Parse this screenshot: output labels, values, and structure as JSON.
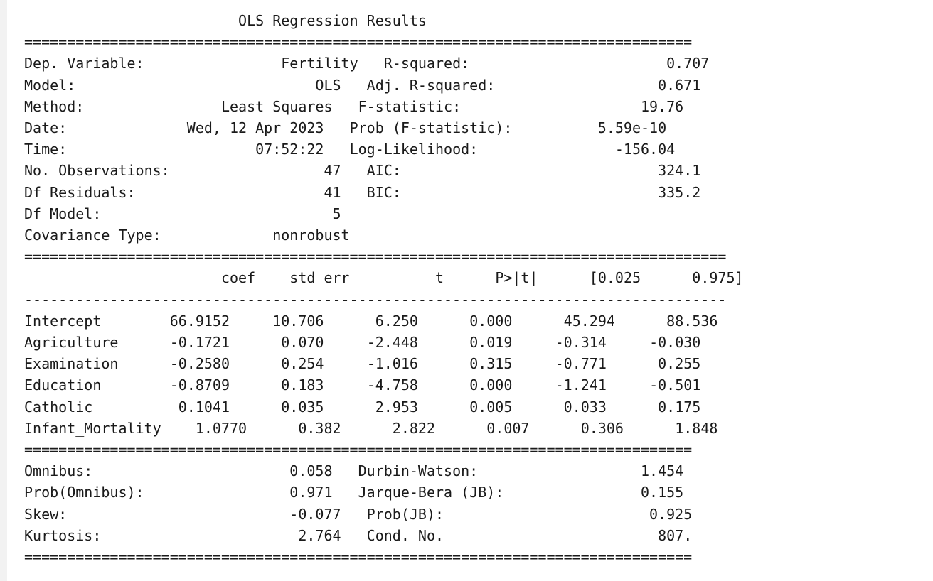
{
  "title": "OLS Regression Results",
  "rule_eq_short": "==============================================================================",
  "rule_eq_long": "==================================================================================",
  "rule_dash_long": "----------------------------------------------------------------------------------",
  "top": [
    {
      "l_label": "Dep. Variable:",
      "l_value": "Fertility",
      "r_label": "R-squared:",
      "r_value": "0.707"
    },
    {
      "l_label": "Model:",
      "l_value": "OLS",
      "r_label": "Adj. R-squared:",
      "r_value": "0.671"
    },
    {
      "l_label": "Method:",
      "l_value": "Least Squares",
      "r_label": "F-statistic:",
      "r_value": "19.76"
    },
    {
      "l_label": "Date:",
      "l_value": "Wed, 12 Apr 2023",
      "r_label": "Prob (F-statistic):",
      "r_value": "5.59e-10"
    },
    {
      "l_label": "Time:",
      "l_value": "07:52:22",
      "r_label": "Log-Likelihood:",
      "r_value": "-156.04"
    },
    {
      "l_label": "No. Observations:",
      "l_value": "47",
      "r_label": "AIC:",
      "r_value": "324.1"
    },
    {
      "l_label": "Df Residuals:",
      "l_value": "41",
      "r_label": "BIC:",
      "r_value": "335.2"
    },
    {
      "l_label": "Df Model:",
      "l_value": "5",
      "r_label": "",
      "r_value": ""
    },
    {
      "l_label": "Covariance Type:",
      "l_value": "nonrobust",
      "r_label": "",
      "r_value": ""
    }
  ],
  "coef_headers": [
    "coef",
    "std err",
    "t",
    "P>|t|",
    "[0.025",
    "0.975]"
  ],
  "coef_rows": [
    {
      "name": "Intercept",
      "values": [
        "66.9152",
        "10.706",
        "6.250",
        "0.000",
        "45.294",
        "88.536"
      ]
    },
    {
      "name": "Agriculture",
      "values": [
        "-0.1721",
        "0.070",
        "-2.448",
        "0.019",
        "-0.314",
        "-0.030"
      ]
    },
    {
      "name": "Examination",
      "values": [
        "-0.2580",
        "0.254",
        "-1.016",
        "0.315",
        "-0.771",
        "0.255"
      ]
    },
    {
      "name": "Education",
      "values": [
        "-0.8709",
        "0.183",
        "-4.758",
        "0.000",
        "-1.241",
        "-0.501"
      ]
    },
    {
      "name": "Catholic",
      "values": [
        "0.1041",
        "0.035",
        "2.953",
        "0.005",
        "0.033",
        "0.175"
      ]
    },
    {
      "name": "Infant_Mortality",
      "values": [
        "1.0770",
        "0.382",
        "2.822",
        "0.007",
        "0.306",
        "1.848"
      ]
    }
  ],
  "bottom": [
    {
      "l_label": "Omnibus:",
      "l_value": "0.058",
      "r_label": "Durbin-Watson:",
      "r_value": "1.454"
    },
    {
      "l_label": "Prob(Omnibus):",
      "l_value": "0.971",
      "r_label": "Jarque-Bera (JB):",
      "r_value": "0.155"
    },
    {
      "l_label": "Skew:",
      "l_value": "-0.077",
      "r_label": "Prob(JB):",
      "r_value": "0.925"
    },
    {
      "l_label": "Kurtosis:",
      "l_value": "2.764",
      "r_label": "Cond. No.",
      "r_value": "807."
    }
  ]
}
